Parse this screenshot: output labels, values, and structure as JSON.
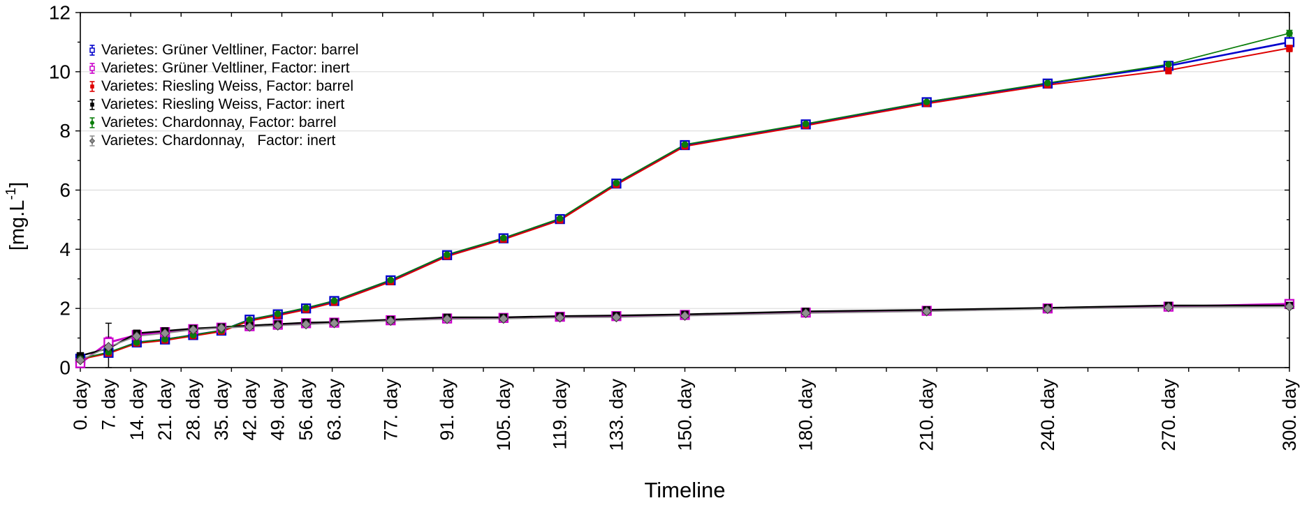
{
  "chart_data": {
    "type": "line",
    "x_axis_title": "Timeline",
    "y_axis_title": "[mg.L-1]",
    "y_axis_title_parts": {
      "prefix": "[mg.L",
      "sup": "-1",
      "suffix": "]"
    },
    "x_unit": "day",
    "xlim": [
      0,
      300
    ],
    "ylim": [
      0,
      12
    ],
    "x": [
      0,
      7,
      14,
      21,
      28,
      35,
      42,
      49,
      56,
      63,
      77,
      91,
      105,
      119,
      133,
      150,
      180,
      210,
      240,
      270,
      300
    ],
    "x_tick_labels": [
      "0. day",
      "7. day",
      "14. day",
      "21. day",
      "28. day",
      "35. day",
      "42. day",
      "49. day",
      "56. day",
      "63. day",
      "77. day",
      "91. day",
      "105. day",
      "119. day",
      "133. day",
      "150. day",
      "180. day",
      "210. day",
      "240. day",
      "270. day",
      "300. day"
    ],
    "y_ticks": [
      0,
      2,
      4,
      6,
      8,
      10,
      12
    ],
    "y_tick_labels": [
      "0",
      "2",
      "4",
      "6",
      "8",
      "10",
      "12"
    ],
    "x_minor_tick_step_days": 12.5,
    "grid": "horizontal-light-gray",
    "legend_position": "top-left-inside",
    "style": {
      "background": "#ffffff",
      "grid_color": "#dcdcdc",
      "axis_color": "#000000",
      "text_color": "#000000"
    },
    "series": [
      {
        "key": "gruner-veltliner-barrel",
        "label": "Varietes: Grüner Veltliner, Factor: barrel",
        "color": "#0000CC",
        "marker": "open-square",
        "marker_size": 12,
        "line_width": 2.6,
        "values": [
          0.3,
          0.5,
          0.85,
          0.95,
          1.1,
          1.25,
          1.62,
          1.8,
          2.0,
          2.25,
          2.95,
          3.8,
          4.37,
          5.02,
          6.22,
          7.52,
          8.22,
          8.97,
          9.6,
          10.2,
          11.0
        ],
        "err": [
          0.05,
          0.06,
          0.06,
          0.06,
          0.06,
          0.06,
          0.06,
          0.06,
          0.06,
          0.06,
          0.06,
          0.06,
          0.06,
          0.06,
          0.06,
          0.1,
          0.06,
          0.06,
          0.06,
          0.06,
          0.08
        ]
      },
      {
        "key": "gruner-veltliner-inert",
        "label": "Varietes: Grüner Veltliner, Factor: inert",
        "color": "#CC00CC",
        "marker": "open-square",
        "marker_size": 12,
        "line_width": 3.0,
        "values": [
          0.15,
          0.85,
          1.1,
          1.2,
          1.3,
          1.35,
          1.4,
          1.45,
          1.5,
          1.52,
          1.6,
          1.66,
          1.68,
          1.72,
          1.74,
          1.78,
          1.86,
          1.92,
          2.0,
          2.06,
          2.15
        ],
        "err": [
          0.05,
          0.18,
          0.06,
          0.06,
          0.06,
          0.06,
          0.06,
          0.06,
          0.06,
          0.06,
          0.06,
          0.06,
          0.06,
          0.06,
          0.06,
          0.06,
          0.06,
          0.06,
          0.06,
          0.06,
          0.08
        ]
      },
      {
        "key": "riesling-weiss-barrel",
        "label": "Varietes: Riesling Weiss, Factor: barrel",
        "color": "#DE0000",
        "marker": "filled-square",
        "marker_size": 9.5,
        "line_width": 2.0,
        "values": [
          0.28,
          0.48,
          0.82,
          0.92,
          1.07,
          1.22,
          1.58,
          1.76,
          1.96,
          2.2,
          2.9,
          3.76,
          4.33,
          4.98,
          6.18,
          7.48,
          8.18,
          8.92,
          9.55,
          10.05,
          10.8
        ],
        "err": [
          0.05,
          0.06,
          0.06,
          0.06,
          0.06,
          0.06,
          0.06,
          0.06,
          0.06,
          0.06,
          0.06,
          0.06,
          0.06,
          0.06,
          0.06,
          0.06,
          0.06,
          0.06,
          0.06,
          0.12,
          0.12
        ]
      },
      {
        "key": "riesling-weiss-inert",
        "label": "Varietes: Riesling Weiss, Factor: inert",
        "color": "#000000",
        "marker": "filled-square",
        "marker_size": 10.5,
        "line_width": 2.4,
        "values": [
          0.4,
          0.65,
          1.16,
          1.24,
          1.32,
          1.37,
          1.42,
          1.47,
          1.52,
          1.54,
          1.62,
          1.7,
          1.7,
          1.74,
          1.76,
          1.8,
          1.9,
          1.95,
          2.02,
          2.1,
          2.1
        ],
        "err": [
          0.1,
          0.85,
          0.06,
          0.06,
          0.06,
          0.06,
          0.06,
          0.06,
          0.06,
          0.06,
          0.06,
          0.06,
          0.06,
          0.06,
          0.06,
          0.06,
          0.06,
          0.06,
          0.06,
          0.06,
          0.06
        ]
      },
      {
        "key": "chardonnay-barrel",
        "label": "Varietes: Chardonnay, Factor: barrel",
        "color": "#0A7D0A",
        "marker": "filled-circle",
        "marker_size": 9.6,
        "line_width": 1.7,
        "values": [
          0.3,
          0.52,
          0.85,
          0.96,
          1.1,
          1.26,
          1.62,
          1.82,
          2.02,
          2.26,
          2.96,
          3.82,
          4.38,
          5.04,
          6.24,
          7.54,
          8.24,
          8.98,
          9.62,
          10.25,
          11.3
        ],
        "err": [
          0.05,
          0.06,
          0.06,
          0.06,
          0.06,
          0.06,
          0.06,
          0.06,
          0.06,
          0.06,
          0.06,
          0.06,
          0.06,
          0.06,
          0.06,
          0.06,
          0.06,
          0.06,
          0.06,
          0.06,
          0.1
        ]
      },
      {
        "key": "chardonnay-inert",
        "label": "Varietes: Chardonnay,   Factor: inert",
        "color": "#909090",
        "marker": "filled-diamond",
        "marker_size": 13,
        "line_width": 1.8,
        "values": [
          0.25,
          0.7,
          1.06,
          1.16,
          1.28,
          1.34,
          1.38,
          1.42,
          1.46,
          1.5,
          1.58,
          1.64,
          1.65,
          1.69,
          1.7,
          1.75,
          1.84,
          1.9,
          1.98,
          2.04,
          2.06
        ],
        "err": [
          0.05,
          0.1,
          0.05,
          0.05,
          0.05,
          0.05,
          0.05,
          0.05,
          0.05,
          0.05,
          0.05,
          0.05,
          0.05,
          0.05,
          0.05,
          0.05,
          0.05,
          0.05,
          0.05,
          0.05,
          0.05
        ]
      }
    ]
  }
}
